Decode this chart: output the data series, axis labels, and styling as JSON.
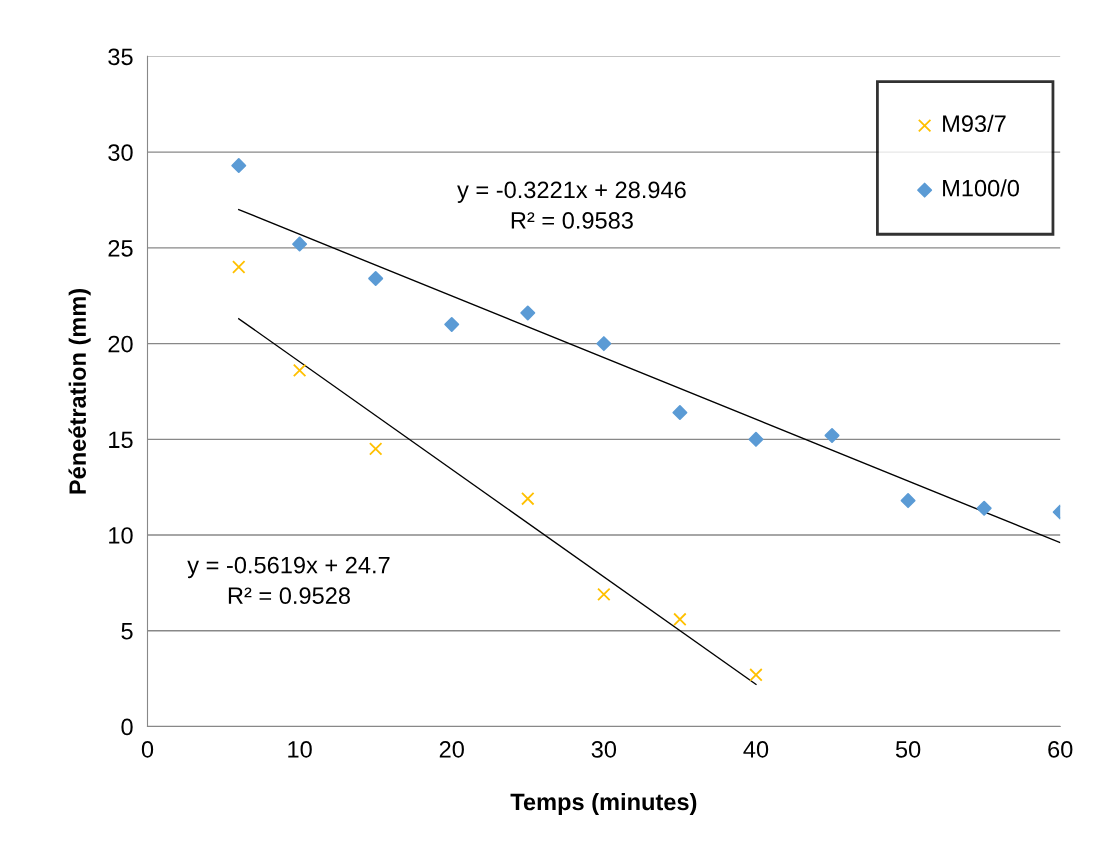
{
  "chart_data": {
    "type": "scatter",
    "xlabel": "Temps (minutes)",
    "ylabel": "Péneétration (mm)",
    "xlim": [
      0,
      60
    ],
    "xticks": [
      0,
      10,
      20,
      30,
      40,
      50,
      60
    ],
    "ylim": [
      0,
      35
    ],
    "yticks": [
      0,
      5,
      10,
      15,
      20,
      25,
      30,
      35
    ],
    "grid": "y",
    "legend": "top right",
    "series": [
      {
        "name": "M93/7",
        "color": "#ffc000",
        "marker": "cross",
        "x": [
          6,
          10,
          15,
          25,
          30,
          35,
          40
        ],
        "values": [
          24,
          18.6,
          14.5,
          11.9,
          6.9,
          5.6,
          2.7
        ]
      },
      {
        "name": "M100/0",
        "color": "#5b9bd5",
        "marker": "diamond",
        "x": [
          6,
          10,
          15,
          20,
          25,
          30,
          35,
          40,
          45,
          50,
          55,
          60
        ],
        "values": [
          29.3,
          25.2,
          23.4,
          21,
          21.6,
          20,
          16.4,
          15,
          15.2,
          11.8,
          11.4,
          11.2
        ]
      },
      {
        "type": "line",
        "color": "#000000",
        "line_style": "solid",
        "x": [
          6,
          60
        ],
        "values": [
          27.0,
          9.6
        ]
      },
      {
        "type": "line",
        "color": "#000000",
        "line_style": "solid",
        "x": [
          6,
          40
        ],
        "values": [
          21.3,
          2.2
        ]
      }
    ],
    "annotations": [
      "y = -0.3221x + 28.946\nR² = 0.9583",
      "y = -0.5619x + 24.7\nR² = 0.9528"
    ]
  }
}
